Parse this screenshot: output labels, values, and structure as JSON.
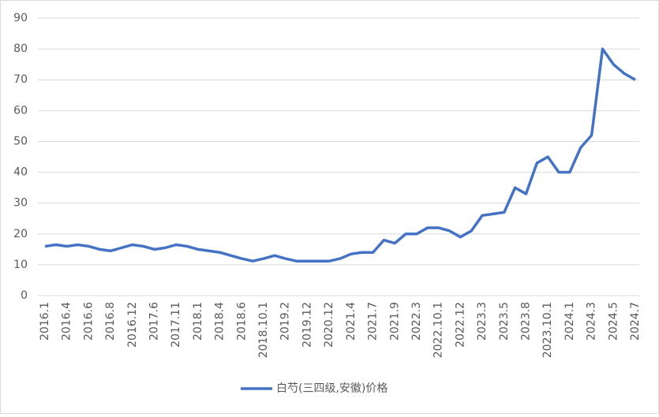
{
  "chart_data": {
    "type": "line",
    "categories": [
      "2016.1",
      null,
      "2016.4",
      null,
      "2016.6",
      null,
      "2016.8",
      null,
      "2016.12",
      null,
      "2017.6",
      null,
      "2017.11",
      null,
      "2018.1",
      null,
      "2018.4",
      null,
      "2018.6",
      null,
      "2018.10.1",
      null,
      "2019.2",
      null,
      "2019.12",
      null,
      "2020.12",
      null,
      "2021.4",
      null,
      "2021.7",
      null,
      "2021.9",
      null,
      "2022.3",
      null,
      "2022.10.1",
      null,
      "2022.12",
      null,
      "2023.3",
      null,
      "2023.5",
      null,
      "2023.8",
      null,
      "2023.10.1",
      null,
      "2024.1",
      null,
      "2024.3",
      null,
      "2024.5",
      null,
      "2024.7"
    ],
    "series": [
      {
        "name": "白芍(三四级,安徽)价格",
        "color": "#4472c4",
        "values": [
          16,
          16.5,
          16,
          16.5,
          16,
          15,
          14.5,
          15.5,
          16.5,
          16,
          15,
          15.5,
          16.5,
          16,
          15,
          14.5,
          14,
          13,
          12,
          11.2,
          12,
          13,
          12,
          11.2,
          11.2,
          11.2,
          11.2,
          12,
          13.5,
          14,
          14,
          18,
          17,
          20,
          20,
          22,
          22,
          21,
          19,
          21,
          26,
          26.5,
          27,
          35,
          33,
          43,
          45,
          40,
          40,
          48,
          52,
          80,
          75,
          72,
          70
        ]
      }
    ],
    "ylim": [
      0,
      90
    ],
    "yticks": [
      0,
      10,
      20,
      30,
      40,
      50,
      60,
      70,
      80,
      90
    ],
    "grid": true,
    "legend": "bottom"
  }
}
